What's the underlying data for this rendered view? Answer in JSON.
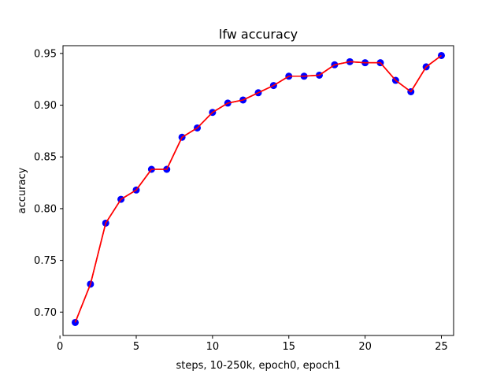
{
  "chart_data": {
    "type": "line",
    "title": "lfw accuracy",
    "xlabel": "steps, 10-250k, epoch0, epoch1",
    "ylabel": "accuracy",
    "xlim": [
      0.2,
      25.8
    ],
    "ylim": [
      0.6774,
      0.9575
    ],
    "xticks": [
      0,
      5,
      10,
      15,
      20,
      25
    ],
    "yticks": [
      0.7,
      0.75,
      0.8,
      0.85,
      0.9,
      0.95
    ],
    "xtick_labels": [
      "0",
      "5",
      "10",
      "15",
      "20",
      "25"
    ],
    "ytick_labels": [
      "0.70",
      "0.75",
      "0.80",
      "0.85",
      "0.90",
      "0.95"
    ],
    "grid": false,
    "series": [
      {
        "line_color": "#ff0000",
        "marker_color": "#0000ff",
        "x": [
          1,
          2,
          3,
          4,
          5,
          6,
          7,
          8,
          9,
          10,
          11,
          12,
          13,
          14,
          15,
          16,
          17,
          18,
          19,
          20,
          21,
          22,
          23,
          24,
          25
        ],
        "y": [
          0.69,
          0.727,
          0.786,
          0.809,
          0.818,
          0.838,
          0.838,
          0.869,
          0.878,
          0.893,
          0.902,
          0.905,
          0.912,
          0.919,
          0.928,
          0.928,
          0.929,
          0.939,
          0.942,
          0.941,
          0.941,
          0.924,
          0.913,
          0.937,
          0.948
        ]
      }
    ]
  }
}
